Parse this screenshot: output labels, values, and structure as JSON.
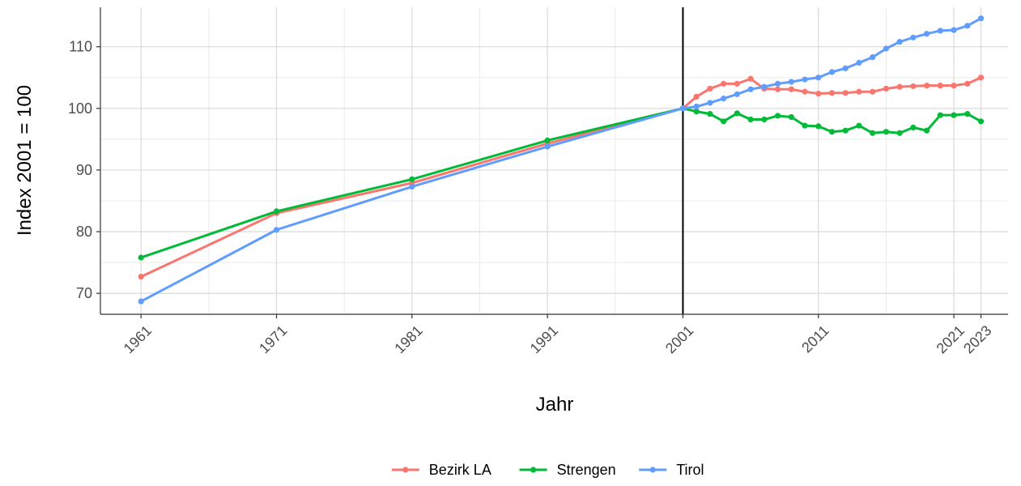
{
  "chart_data": {
    "type": "line",
    "title": "",
    "xlabel": "Jahr",
    "ylabel": "Index 2001 = 100",
    "xlim": [
      1958,
      2025
    ],
    "ylim": [
      66.6,
      116.4
    ],
    "x_ticks": [
      1961,
      1971,
      1981,
      1991,
      2001,
      2011,
      2021,
      2023
    ],
    "x_tick_labels": [
      "1961",
      "1971",
      "1981",
      "1991",
      "2001",
      "2011",
      "2021",
      "2023"
    ],
    "y_ticks": [
      70,
      80,
      90,
      100,
      110
    ],
    "y_tick_labels": [
      "70",
      "80",
      "90",
      "100",
      "110"
    ],
    "grid": true,
    "reference_line": {
      "x": 2001,
      "color": "#000000"
    },
    "legend": {
      "position": "bottom"
    },
    "x": [
      1961,
      1971,
      1981,
      1991,
      2001,
      2002,
      2003,
      2004,
      2005,
      2006,
      2007,
      2008,
      2009,
      2010,
      2011,
      2012,
      2013,
      2014,
      2015,
      2016,
      2017,
      2018,
      2019,
      2020,
      2021,
      2022,
      2023
    ],
    "series": [
      {
        "name": "Bezirk LA",
        "color": "#F8766D",
        "values": [
          72.7,
          83.0,
          87.9,
          94.3,
          100.0,
          101.9,
          103.2,
          104.0,
          104.0,
          104.8,
          103.2,
          103.1,
          103.1,
          102.7,
          102.4,
          102.5,
          102.5,
          102.7,
          102.7,
          103.2,
          103.5,
          103.6,
          103.7,
          103.7,
          103.7,
          104.0,
          105.0
        ]
      },
      {
        "name": "Strengen",
        "color": "#00BA38",
        "values": [
          75.8,
          83.3,
          88.5,
          94.8,
          100.0,
          99.5,
          99.1,
          97.9,
          99.2,
          98.2,
          98.2,
          98.8,
          98.6,
          97.2,
          97.1,
          96.2,
          96.4,
          97.2,
          96.0,
          96.2,
          96.0,
          96.9,
          96.4,
          98.9,
          98.9,
          99.1,
          97.9
        ]
      },
      {
        "name": "Tirol",
        "color": "#619CFF",
        "values": [
          68.7,
          80.3,
          87.3,
          93.8,
          100.0,
          100.3,
          100.9,
          101.6,
          102.3,
          103.1,
          103.5,
          104.0,
          104.3,
          104.7,
          105.0,
          105.9,
          106.5,
          107.4,
          108.3,
          109.7,
          110.8,
          111.5,
          112.1,
          112.6,
          112.7,
          113.4,
          114.6
        ]
      }
    ]
  }
}
